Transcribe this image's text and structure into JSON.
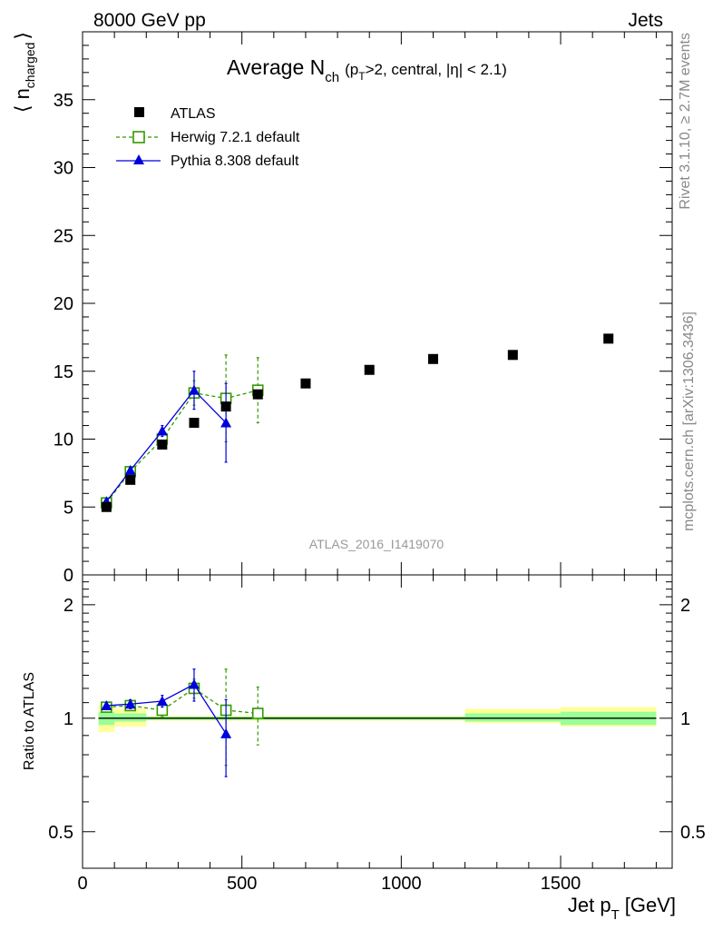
{
  "header": {
    "energy_label": "8000 GeV pp",
    "category_label": "Jets"
  },
  "side_labels": {
    "rivet": "Rivet 3.1.10, ≥ 2.7M events",
    "mcplots": "mcplots.cern.ch [arXiv:1306.3436]"
  },
  "colors": {
    "data": "#000000",
    "herwig": "#339900",
    "pythia": "#0000dd",
    "band_inner": "#99ff99",
    "band_outer": "#ffff99"
  },
  "chart_data": [
    {
      "type": "scatter",
      "panel": "main",
      "title": "Average N",
      "title_sub": "ch",
      "title_suffix": "(p",
      "title_suffix_sub": "T",
      "title_suffix_rest": ">2, central, |η| < 2.1)",
      "ylabel": "⟨ n",
      "ylabel_sub": "charged",
      "ylabel_close": "⟩",
      "watermark": "ATLAS_2016_I1419070",
      "xlim": [
        0,
        1850
      ],
      "ylim": [
        0,
        40
      ],
      "y_ticks": [
        0,
        5,
        10,
        15,
        20,
        25,
        30,
        35
      ],
      "y_tick_labels": [
        "0",
        "5",
        "10",
        "15",
        "20",
        "25",
        "30",
        "35"
      ],
      "legend_position": "top-left",
      "series": [
        {
          "name": "ATLAS",
          "marker": "square-filled",
          "x": [
            75,
            150,
            250,
            350,
            450,
            550,
            700,
            900,
            1100,
            1350,
            1650
          ],
          "y": [
            5.0,
            7.0,
            9.6,
            11.2,
            12.4,
            13.3,
            14.1,
            15.1,
            15.9,
            16.2,
            17.4
          ]
        },
        {
          "name": "Herwig 7.2.1 default",
          "marker": "square-open",
          "line": "dashed",
          "x": [
            75,
            150,
            250,
            350,
            450,
            550
          ],
          "y": [
            5.3,
            7.6,
            10.0,
            13.4,
            13.0,
            13.6
          ],
          "err": [
            0.15,
            0.2,
            0.35,
            0.9,
            3.2,
            2.4
          ]
        },
        {
          "name": "Pythia 8.308 default",
          "marker": "triangle-filled",
          "line": "solid",
          "x": [
            75,
            150,
            250,
            350,
            450
          ],
          "y": [
            5.4,
            7.7,
            10.6,
            13.6,
            11.2
          ],
          "err": [
            0.15,
            0.2,
            0.4,
            1.4,
            2.9
          ]
        }
      ]
    },
    {
      "type": "scatter",
      "panel": "ratio",
      "ylabel": "Ratio to ATLAS",
      "xlabel": "Jet p",
      "xlabel_sub": "T",
      "xlabel_unit": "[GeV]",
      "xlim": [
        0,
        1850
      ],
      "ylim": [
        0.4,
        2.4
      ],
      "log_y": true,
      "x_ticks": [
        0,
        500,
        1000,
        1500
      ],
      "x_tick_labels": [
        "0",
        "500",
        "1000",
        "1500"
      ],
      "y_ticks": [
        0.5,
        1,
        2
      ],
      "y_tick_labels": [
        "0.5",
        "1",
        "2"
      ],
      "bands": [
        {
          "x0": 50,
          "x1": 100,
          "inner": [
            0.96,
            1.04
          ],
          "outer": [
            0.92,
            1.08
          ]
        },
        {
          "x0": 100,
          "x1": 200,
          "inner": [
            0.98,
            1.03
          ],
          "outer": [
            0.95,
            1.06
          ]
        },
        {
          "x0": 200,
          "x1": 300,
          "inner": [
            0.99,
            1.01
          ],
          "outer": [
            0.985,
            1.015
          ]
        },
        {
          "x0": 300,
          "x1": 400,
          "inner": [
            0.99,
            1.01
          ],
          "outer": [
            0.985,
            1.015
          ]
        },
        {
          "x0": 400,
          "x1": 500,
          "inner": [
            0.99,
            1.01
          ],
          "outer": [
            0.985,
            1.015
          ]
        },
        {
          "x0": 500,
          "x1": 600,
          "inner": [
            0.99,
            1.01
          ],
          "outer": [
            0.985,
            1.015
          ]
        },
        {
          "x0": 600,
          "x1": 800,
          "inner": [
            0.99,
            1.01
          ],
          "outer": [
            0.985,
            1.015
          ]
        },
        {
          "x0": 800,
          "x1": 1000,
          "inner": [
            0.99,
            1.01
          ],
          "outer": [
            0.985,
            1.015
          ]
        },
        {
          "x0": 1000,
          "x1": 1200,
          "inner": [
            0.99,
            1.01
          ],
          "outer": [
            0.985,
            1.015
          ]
        },
        {
          "x0": 1200,
          "x1": 1500,
          "inner": [
            0.98,
            1.03
          ],
          "outer": [
            0.97,
            1.06
          ]
        },
        {
          "x0": 1500,
          "x1": 1800,
          "inner": [
            0.96,
            1.04
          ],
          "outer": [
            0.95,
            1.07
          ]
        }
      ],
      "series": [
        {
          "name": "Herwig 7.2.1 default",
          "marker": "square-open",
          "line": "dashed",
          "x": [
            75,
            150,
            250,
            350,
            450,
            550
          ],
          "y": [
            1.07,
            1.08,
            1.05,
            1.2,
            1.05,
            1.03
          ],
          "err": [
            0.02,
            0.03,
            0.04,
            0.07,
            0.3,
            0.18
          ]
        },
        {
          "name": "Pythia 8.308 default",
          "marker": "triangle-filled",
          "line": "solid",
          "x": [
            75,
            150,
            250,
            350,
            450
          ],
          "y": [
            1.08,
            1.09,
            1.11,
            1.23,
            0.91
          ],
          "err": [
            0.02,
            0.03,
            0.04,
            0.12,
            0.21
          ]
        }
      ]
    }
  ]
}
